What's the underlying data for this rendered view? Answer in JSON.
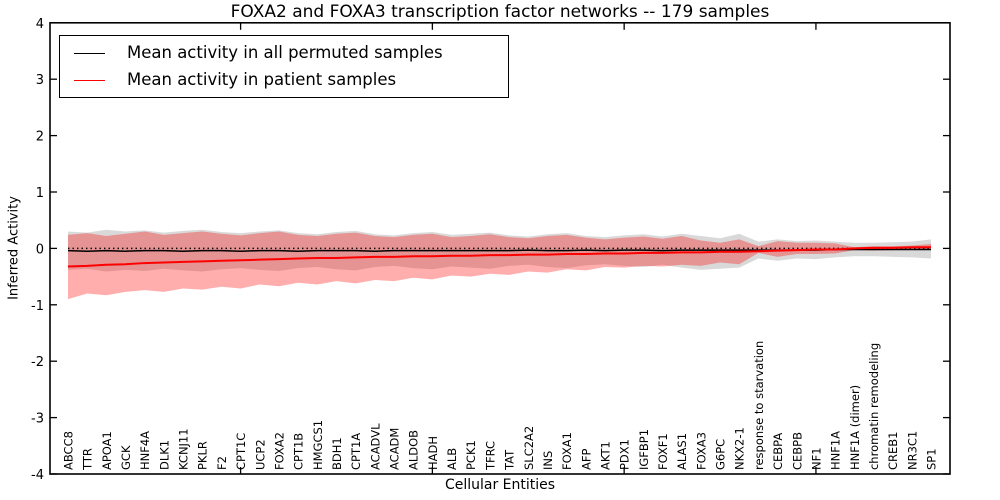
{
  "chart_data": {
    "type": "line",
    "title": "FOXA2 and FOXA3 transcription factor networks -- 179 samples",
    "xlabel": "Cellular Entities",
    "ylabel": "Inferred Activity",
    "ylim": [
      -4,
      4
    ],
    "yticks": [
      -4,
      -3,
      -2,
      -1,
      0,
      1,
      2,
      3,
      4
    ],
    "x_major_ticks": [
      10,
      20,
      30,
      40
    ],
    "grid": false,
    "legend": {
      "position": "upper left",
      "entries": [
        {
          "label": "Mean activity in all permuted samples",
          "color": "#000000"
        },
        {
          "label": "Mean activity in patient samples",
          "color": "#ff0000"
        }
      ]
    },
    "categories": [
      "ABCC8",
      "TTR",
      "APOA1",
      "GCK",
      "HNF4A",
      "DLK1",
      "KCNJ11",
      "PKLR",
      "F2",
      "CPT1C",
      "UCP2",
      "FOXA2",
      "CPT1B",
      "HMGCS1",
      "BDH1",
      "CPT1A",
      "ACADVL",
      "ACADM",
      "ALDOB",
      "HADH",
      "ALB",
      "PCK1",
      "TFRC",
      "TAT",
      "SLC2A2",
      "INS",
      "FOXA1",
      "AFP",
      "AKT1",
      "PDX1",
      "IGFBP1",
      "FOXF1",
      "ALAS1",
      "FOXA3",
      "G6PC",
      "NKX2-1",
      "response to starvation",
      "CEBPA",
      "CEBPB",
      "NF1",
      "HNF1A",
      "HNF1A (dimer)",
      "chromatin remodeling",
      "CREB1",
      "NR3C1",
      "SP1"
    ],
    "series": [
      {
        "name": "Mean activity in all permuted samples",
        "color": "#000000",
        "linewidth": 1.5,
        "values": [
          -0.04,
          -0.05,
          -0.04,
          -0.05,
          -0.04,
          -0.04,
          -0.05,
          -0.04,
          -0.04,
          -0.05,
          -0.04,
          -0.04,
          -0.05,
          -0.04,
          -0.04,
          -0.04,
          -0.05,
          -0.04,
          -0.04,
          -0.04,
          -0.04,
          -0.04,
          -0.04,
          -0.04,
          -0.03,
          -0.04,
          -0.04,
          -0.03,
          -0.04,
          -0.03,
          -0.03,
          -0.04,
          -0.03,
          -0.03,
          -0.03,
          -0.03,
          -0.03,
          -0.03,
          -0.03,
          -0.03,
          -0.02,
          -0.02,
          -0.02,
          -0.02,
          -0.02,
          -0.02
        ]
      },
      {
        "name": "Mean activity in patient samples",
        "color": "#ff0000",
        "linewidth": 2,
        "values": [
          -0.32,
          -0.31,
          -0.29,
          -0.28,
          -0.26,
          -0.25,
          -0.24,
          -0.23,
          -0.22,
          -0.21,
          -0.2,
          -0.19,
          -0.18,
          -0.17,
          -0.17,
          -0.16,
          -0.15,
          -0.15,
          -0.14,
          -0.14,
          -0.13,
          -0.13,
          -0.12,
          -0.12,
          -0.11,
          -0.11,
          -0.1,
          -0.1,
          -0.09,
          -0.09,
          -0.08,
          -0.08,
          -0.07,
          -0.07,
          -0.06,
          -0.06,
          -0.05,
          -0.04,
          -0.03,
          -0.02,
          -0.02,
          0.0,
          0.01,
          0.01,
          0.02,
          0.02
        ]
      }
    ],
    "bands": [
      {
        "name": "permuted-samples-std-band",
        "color": "#000000",
        "opacity": 0.15,
        "upper": [
          0.3,
          0.28,
          0.33,
          0.3,
          0.32,
          0.28,
          0.31,
          0.33,
          0.29,
          0.27,
          0.3,
          0.32,
          0.27,
          0.25,
          0.29,
          0.31,
          0.25,
          0.23,
          0.27,
          0.29,
          0.24,
          0.26,
          0.28,
          0.23,
          0.21,
          0.25,
          0.27,
          0.22,
          0.2,
          0.23,
          0.25,
          0.21,
          0.26,
          0.22,
          0.18,
          0.26,
          0.12,
          0.16,
          0.13,
          0.14,
          0.12,
          0.1,
          0.1,
          0.11,
          0.12,
          0.16
        ],
        "lower": [
          -0.38,
          -0.36,
          -0.41,
          -0.38,
          -0.4,
          -0.36,
          -0.39,
          -0.41,
          -0.37,
          -0.35,
          -0.38,
          -0.4,
          -0.35,
          -0.33,
          -0.37,
          -0.39,
          -0.33,
          -0.31,
          -0.35,
          -0.37,
          -0.32,
          -0.34,
          -0.36,
          -0.31,
          -0.29,
          -0.33,
          -0.35,
          -0.3,
          -0.28,
          -0.31,
          -0.33,
          -0.29,
          -0.34,
          -0.38,
          -0.36,
          -0.34,
          -0.18,
          -0.22,
          -0.18,
          -0.19,
          -0.16,
          -0.14,
          -0.14,
          -0.15,
          -0.16,
          -0.18
        ]
      },
      {
        "name": "patient-samples-std-band",
        "color": "#ff0000",
        "opacity": 0.32,
        "upper": [
          0.24,
          0.27,
          0.22,
          0.26,
          0.3,
          0.24,
          0.27,
          0.3,
          0.26,
          0.23,
          0.27,
          0.3,
          0.24,
          0.22,
          0.26,
          0.28,
          0.22,
          0.2,
          0.24,
          0.26,
          0.2,
          0.22,
          0.25,
          0.2,
          0.18,
          0.22,
          0.24,
          0.19,
          0.16,
          0.19,
          0.21,
          0.17,
          0.22,
          0.14,
          0.1,
          0.16,
          0.04,
          0.13,
          0.1,
          0.1,
          0.09,
          0.02,
          0.04,
          0.04,
          0.05,
          0.08
        ],
        "lower": [
          -0.9,
          -0.8,
          -0.83,
          -0.77,
          -0.74,
          -0.77,
          -0.71,
          -0.73,
          -0.68,
          -0.71,
          -0.64,
          -0.67,
          -0.61,
          -0.64,
          -0.58,
          -0.62,
          -0.56,
          -0.58,
          -0.52,
          -0.55,
          -0.48,
          -0.5,
          -0.45,
          -0.47,
          -0.41,
          -0.43,
          -0.37,
          -0.39,
          -0.33,
          -0.34,
          -0.31,
          -0.32,
          -0.29,
          -0.31,
          -0.25,
          -0.28,
          -0.08,
          -0.15,
          -0.1,
          -0.1,
          -0.09,
          -0.03,
          -0.04,
          -0.03,
          -0.02,
          -0.02
        ]
      }
    ],
    "reference_line": {
      "y": 0,
      "color": "#000000",
      "style": "dotted"
    }
  }
}
